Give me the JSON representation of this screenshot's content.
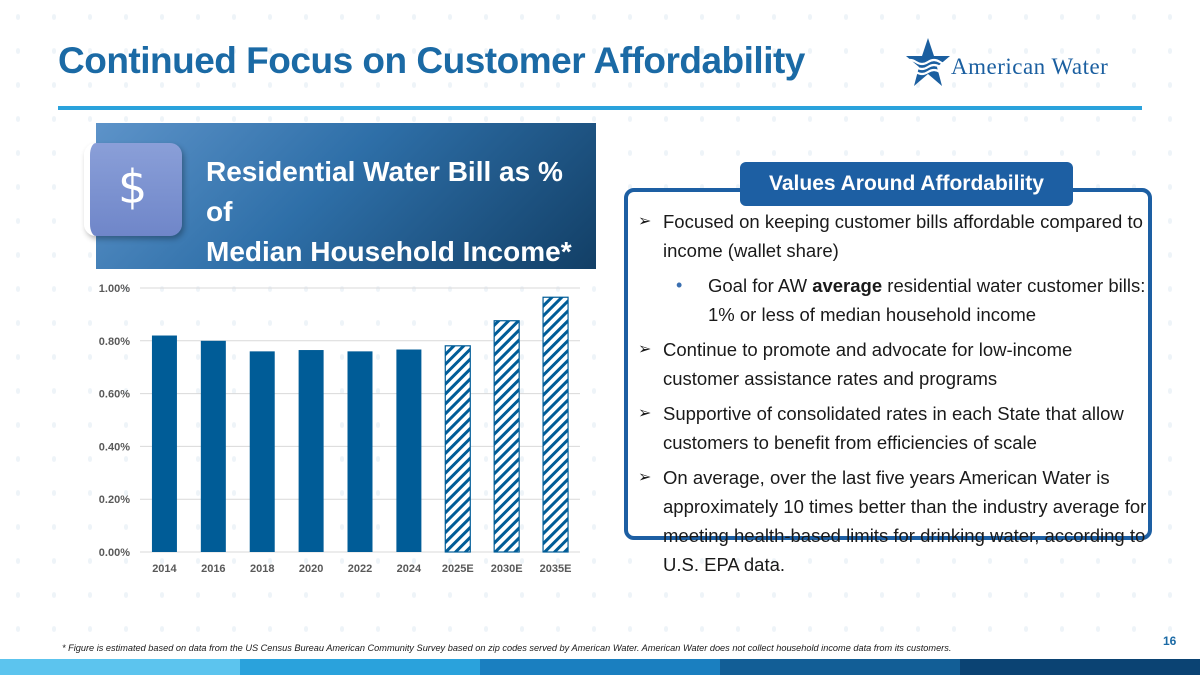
{
  "slide": {
    "title": "Continued Focus on Customer Affordability",
    "page_number": "16",
    "footnote": "* Figure is estimated based on data from the US Census Bureau American Community Survey based on zip codes served by American Water.  American Water does not collect household income data from its customers."
  },
  "logo": {
    "text": "American Water",
    "icon": "star-wave-icon",
    "color": "#1b5fa0"
  },
  "chart_header": {
    "icon_text": "$",
    "title_line1": "Residential Water Bill as % of",
    "title_line2": "Median Household Income*"
  },
  "panel": {
    "heading": "Values Around Affordability",
    "bullet1": "Focused on keeping customer bills affordable compared to income (wallet share)",
    "sub_bullet_prefix": "Goal for AW",
    "sub_bullet_bold": "average",
    "sub_bullet_suffix": "residential water customer bills: 1% or less of median household income",
    "bullet2": "Continue to promote and advocate for low-income customer assistance rates and programs",
    "bullet3": "Supportive of consolidated rates in each State that allow customers to benefit from efficiencies of scale",
    "bullet4": "On average, over the last five years American Water is approximately 10 times better than the industry average for meeting health-based limits for drinking water, according to U.S. EPA data."
  },
  "chart_data": {
    "type": "bar",
    "categories": [
      "2014",
      "2016",
      "2018",
      "2020",
      "2022",
      "2024",
      "2025E",
      "2030E",
      "2035E"
    ],
    "values": [
      0.82,
      0.8,
      0.76,
      0.765,
      0.76,
      0.767,
      0.781,
      0.876,
      0.965
    ],
    "estimated": [
      false,
      false,
      false,
      false,
      false,
      false,
      true,
      true,
      true
    ],
    "yticks": [
      "0.00%",
      "0.20%",
      "0.40%",
      "0.60%",
      "0.80%",
      "1.00%"
    ],
    "ylim": [
      0,
      1.0
    ],
    "grid": true,
    "bar_color": "#005c97",
    "hatch_color": "#005c97"
  },
  "colors": {
    "title": "#1b6aa5",
    "accent_rule": "#2aa2dc",
    "panel_border": "#1d5fa3",
    "footer": [
      "#5cc4ee",
      "#2aa2dc",
      "#1a7fc0",
      "#125e96",
      "#0b4373"
    ]
  }
}
